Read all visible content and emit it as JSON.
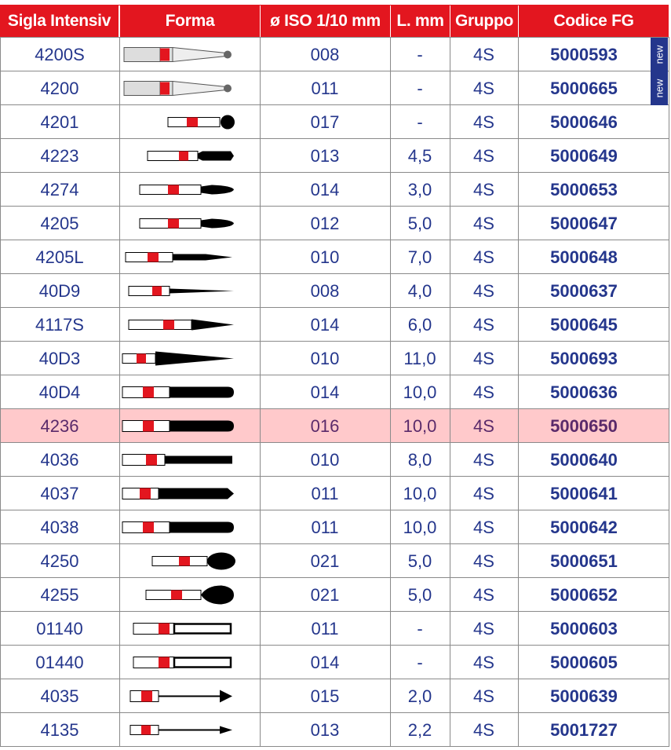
{
  "table": {
    "headers": [
      "Sigla Intensiv",
      "Forma",
      "ø ISO 1/10 mm",
      "L. mm",
      "Gruppo",
      "Codice FG"
    ],
    "new_label": "new",
    "colors": {
      "header_bg": "#e3161f",
      "text": "#24368c",
      "highlight_bg": "#ffc9cb",
      "marker": "#e3161f"
    },
    "rows": [
      {
        "sigla": "4200S",
        "iso": "008",
        "l": "-",
        "gruppo": "4S",
        "codice": "5000593",
        "shape": "flame-thin-ball",
        "new": true
      },
      {
        "sigla": "4200",
        "iso": "011",
        "l": "-",
        "gruppo": "4S",
        "codice": "5000665",
        "shape": "flame-thin-ball",
        "new": true
      },
      {
        "sigla": "4201",
        "iso": "017",
        "l": "-",
        "gruppo": "4S",
        "codice": "5000646",
        "shape": "round-ball"
      },
      {
        "sigla": "4223",
        "iso": "013",
        "l": "4,5",
        "gruppo": "4S",
        "codice": "5000649",
        "shape": "short-cylinder"
      },
      {
        "sigla": "4274",
        "iso": "014",
        "l": "3,0",
        "gruppo": "4S",
        "codice": "5000653",
        "shape": "short-flame"
      },
      {
        "sigla": "4205",
        "iso": "012",
        "l": "5,0",
        "gruppo": "4S",
        "codice": "5000647",
        "shape": "short-flame"
      },
      {
        "sigla": "4205L",
        "iso": "010",
        "l": "7,0",
        "gruppo": "4S",
        "codice": "5000648",
        "shape": "long-needle"
      },
      {
        "sigla": "40D9",
        "iso": "008",
        "l": "4,0",
        "gruppo": "4S",
        "codice": "5000637",
        "shape": "thin-needle"
      },
      {
        "sigla": "4117S",
        "iso": "014",
        "l": "6,0",
        "gruppo": "4S",
        "codice": "5000645",
        "shape": "taper"
      },
      {
        "sigla": "40D3",
        "iso": "010",
        "l": "11,0",
        "gruppo": "4S",
        "codice": "5000693",
        "shape": "long-taper"
      },
      {
        "sigla": "40D4",
        "iso": "014",
        "l": "10,0",
        "gruppo": "4S",
        "codice": "5000636",
        "shape": "round-end-cylinder"
      },
      {
        "sigla": "4236",
        "iso": "016",
        "l": "10,0",
        "gruppo": "4S",
        "codice": "5000650",
        "shape": "round-end-cylinder",
        "highlight": true
      },
      {
        "sigla": "4036",
        "iso": "010",
        "l": "8,0",
        "gruppo": "4S",
        "codice": "5000640",
        "shape": "flat-cylinder"
      },
      {
        "sigla": "4037",
        "iso": "011",
        "l": "10,0",
        "gruppo": "4S",
        "codice": "5000641",
        "shape": "pointed-cylinder"
      },
      {
        "sigla": "4038",
        "iso": "011",
        "l": "10,0",
        "gruppo": "4S",
        "codice": "5000642",
        "shape": "round-end-cylinder"
      },
      {
        "sigla": "4250",
        "iso": "021",
        "l": "5,0",
        "gruppo": "4S",
        "codice": "5000651",
        "shape": "egg"
      },
      {
        "sigla": "4255",
        "iso": "021",
        "l": "5,0",
        "gruppo": "4S",
        "codice": "5000652",
        "shape": "egg-pointed"
      },
      {
        "sigla": "01140",
        "iso": "011",
        "l": "-",
        "gruppo": "4S",
        "codice": "5000603",
        "shape": "outline-cylinder"
      },
      {
        "sigla": "01440",
        "iso": "014",
        "l": "-",
        "gruppo": "4S",
        "codice": "5000605",
        "shape": "outline-cylinder"
      },
      {
        "sigla": "4035",
        "iso": "015",
        "l": "2,0",
        "gruppo": "4S",
        "codice": "5000639",
        "shape": "thin-arrow"
      },
      {
        "sigla": "4135",
        "iso": "013",
        "l": "2,2",
        "gruppo": "4S",
        "codice": "5001727",
        "shape": "thin-arrow-small"
      }
    ]
  }
}
